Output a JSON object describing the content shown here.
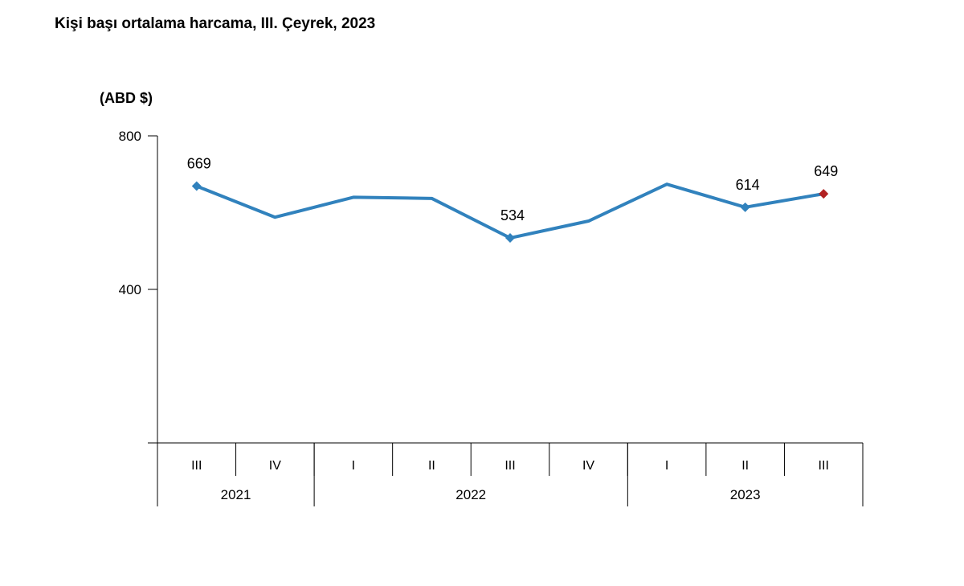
{
  "chart_data": {
    "type": "line",
    "title": "Kişi başı ortalama harcama, III. Çeyrek, 2023",
    "ylabel": "(ABD $)",
    "xlabel": "",
    "ylim": [
      0,
      800
    ],
    "yticks": [
      {
        "value": 0,
        "label": ""
      },
      {
        "value": 400,
        "label": "400"
      },
      {
        "value": 800,
        "label": "800"
      }
    ],
    "categories": [
      "III",
      "IV",
      "I",
      "II",
      "III",
      "IV",
      "I",
      "II",
      "III"
    ],
    "groups": [
      {
        "label": "2021",
        "count": 2
      },
      {
        "label": "2022",
        "count": 4
      },
      {
        "label": "2023",
        "count": 3
      }
    ],
    "series": [
      {
        "name": "Kişi başı ortalama harcama",
        "color": "#3182bd",
        "values": [
          669,
          588,
          640,
          637,
          534,
          578,
          674,
          614,
          649
        ]
      }
    ],
    "data_labels": [
      {
        "index": 0,
        "text": "669"
      },
      {
        "index": 4,
        "text": "534"
      },
      {
        "index": 7,
        "text": "614"
      },
      {
        "index": 8,
        "text": "649"
      }
    ],
    "highlight_index": 8,
    "highlight_color": "#b22222",
    "grid": false
  }
}
